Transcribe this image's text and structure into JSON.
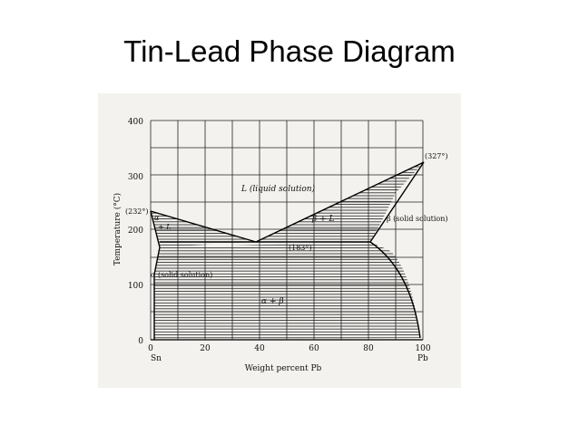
{
  "slide": {
    "title": "Tin-Lead Phase Diagram"
  },
  "diagram": {
    "y_axis": {
      "label": "Temperature (°C)",
      "ticks": [
        "400",
        "300",
        "200",
        "100",
        "0"
      ]
    },
    "x_axis": {
      "label": "Weight percent Pb",
      "ticks": [
        "0",
        "20",
        "40",
        "60",
        "80",
        "100"
      ],
      "left_end": "Sn",
      "right_end": "Pb"
    },
    "regions": {
      "liquid": "L (liquid solution)",
      "alpha_liquid_a": "α",
      "alpha_liquid_b": "+ L",
      "beta_liquid": "β + L",
      "beta": "β (solid solution)",
      "alpha": "α (solid solution)",
      "alpha_beta": "α + β"
    },
    "annotations": {
      "sn_melt": "(232°)",
      "pb_melt": "(327°)",
      "eutectic": "(183°)"
    }
  }
}
